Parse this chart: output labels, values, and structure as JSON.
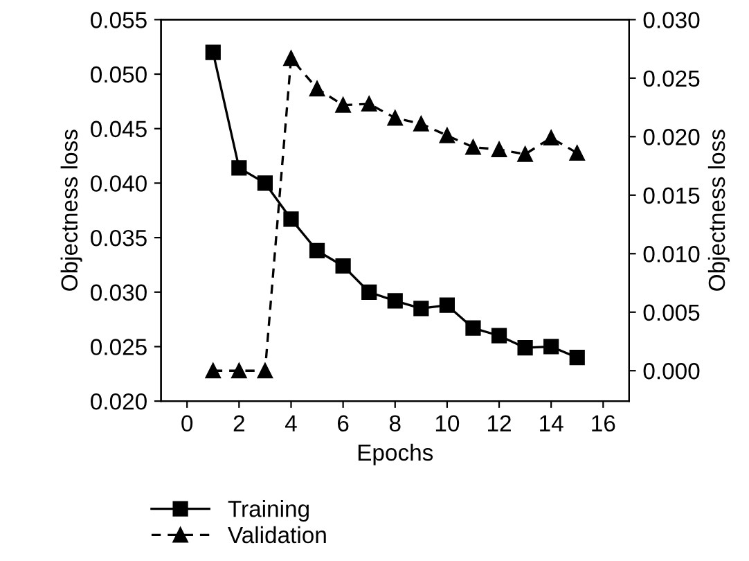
{
  "chart_data": {
    "type": "line",
    "xlabel": "Epochs",
    "ylabel": "Objectness loss",
    "y2label": "Objectness loss",
    "xlim": [
      -1,
      17
    ],
    "xticks": [
      0,
      2,
      4,
      6,
      8,
      10,
      12,
      14,
      16
    ],
    "ylim": [
      0.02,
      0.055
    ],
    "yticks": [
      {
        "value": 0.02,
        "label": "0.020"
      },
      {
        "value": 0.025,
        "label": "0.025"
      },
      {
        "value": 0.03,
        "label": "0.030"
      },
      {
        "value": 0.035,
        "label": "0.035"
      },
      {
        "value": 0.04,
        "label": "0.040"
      },
      {
        "value": 0.045,
        "label": "0.045"
      },
      {
        "value": 0.05,
        "label": "0.050"
      },
      {
        "value": 0.055,
        "label": "0.055"
      }
    ],
    "y2lim": [
      -0.0026,
      0.03
    ],
    "y2ticks": [
      {
        "value": 0.0,
        "label": "0.000"
      },
      {
        "value": 0.005,
        "label": "0.005"
      },
      {
        "value": 0.01,
        "label": "0.010"
      },
      {
        "value": 0.015,
        "label": "0.015"
      },
      {
        "value": 0.02,
        "label": "0.020"
      },
      {
        "value": 0.025,
        "label": "0.025"
      },
      {
        "value": 0.03,
        "label": "0.030"
      }
    ],
    "x": [
      1,
      2,
      3,
      4,
      5,
      6,
      7,
      8,
      9,
      10,
      11,
      12,
      13,
      14,
      15
    ],
    "legend": "bottom",
    "grid": false,
    "series": [
      {
        "name": "Training",
        "color": "#000000",
        "marker": "square",
        "line_style": "solid",
        "values": [
          0.052,
          0.0414,
          0.04,
          0.0367,
          0.0338,
          0.0324,
          0.03,
          0.0292,
          0.0285,
          0.0288,
          0.0267,
          0.026,
          0.0249,
          0.025,
          0.024
        ]
      },
      {
        "name": "Validation",
        "color": "#000000",
        "marker": "triangle",
        "line_style": "dashed",
        "axis": "y2",
        "values": [
          0.0,
          0.0,
          0.0,
          0.0267,
          0.0241,
          0.0227,
          0.0228,
          0.0216,
          0.0211,
          0.0201,
          0.0191,
          0.0189,
          0.0185,
          0.0199,
          0.0186
        ]
      }
    ]
  }
}
